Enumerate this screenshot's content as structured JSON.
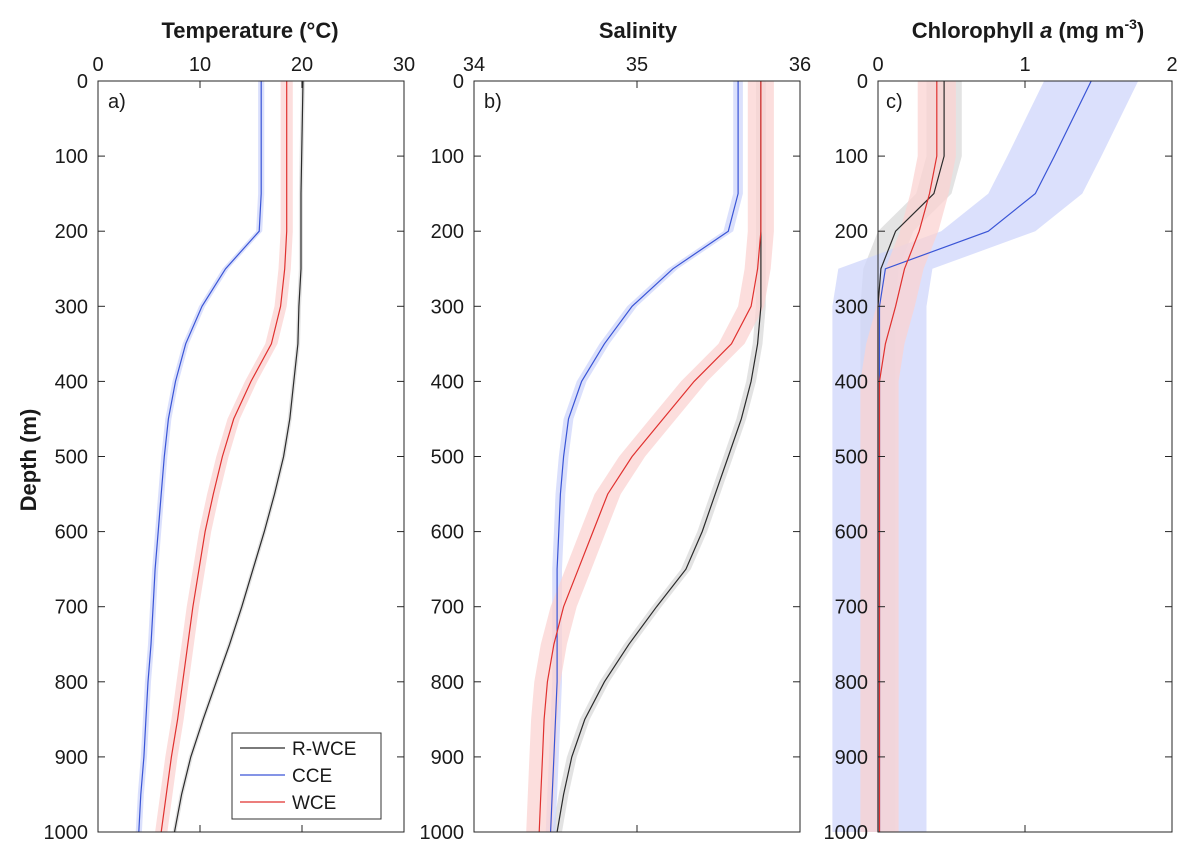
{
  "ylabel": "Depth (m)",
  "legend": {
    "placement": "bottom-right of panel a",
    "entries": [
      {
        "name": "R-WCE",
        "color": "#2b2b2b"
      },
      {
        "name": "CCE",
        "color": "#3a55d6"
      },
      {
        "name": "WCE",
        "color": "#e0312f"
      }
    ]
  },
  "colors": {
    "R-WCE": "#2b2b2b",
    "CCE": "#3a55d6",
    "WCE": "#e0312f",
    "R-WCE_band": "#d9d9d9",
    "CCE_band": "#cfd6fb",
    "WCE_band": "#fbd3d2"
  },
  "chart_data": [
    {
      "type": "line",
      "panel_label": "a)",
      "title_parts": [
        "Temperature (°C)"
      ],
      "xlim": [
        0,
        30
      ],
      "xticks": [
        "0",
        "10",
        "20",
        "30"
      ],
      "ylim": [
        0,
        1000
      ],
      "yticks": [
        "0",
        "100",
        "200",
        "300",
        "400",
        "500",
        "600",
        "700",
        "800",
        "900",
        "1000"
      ],
      "y_reversed": true,
      "x_axis_position": "top",
      "grid": false,
      "depth": [
        0,
        150,
        200,
        250,
        300,
        350,
        400,
        450,
        500,
        550,
        600,
        650,
        700,
        750,
        800,
        850,
        900,
        950,
        1000
      ],
      "series": [
        {
          "name": "R-WCE",
          "values": [
            20.1,
            19.9,
            19.9,
            19.9,
            19.7,
            19.6,
            19.2,
            18.8,
            18.2,
            17.3,
            16.3,
            15.2,
            14.1,
            12.9,
            11.6,
            10.3,
            9.1,
            8.2,
            7.5
          ],
          "band": 0.2
        },
        {
          "name": "CCE",
          "values": [
            16.0,
            16.0,
            15.8,
            12.5,
            10.2,
            8.6,
            7.6,
            6.9,
            6.5,
            6.2,
            5.9,
            5.6,
            5.4,
            5.2,
            4.9,
            4.7,
            4.5,
            4.2,
            4.0
          ],
          "band": 0.3
        },
        {
          "name": "WCE",
          "values": [
            18.5,
            18.5,
            18.5,
            18.3,
            17.9,
            17.0,
            15.0,
            13.3,
            12.2,
            11.3,
            10.5,
            9.9,
            9.3,
            8.8,
            8.3,
            7.8,
            7.2,
            6.7,
            6.2
          ],
          "band": 0.6
        }
      ]
    },
    {
      "type": "line",
      "panel_label": "b)",
      "title_parts": [
        "Salinity"
      ],
      "xlim": [
        34,
        36
      ],
      "xticks": [
        "34",
        "35",
        "36"
      ],
      "ylim": [
        0,
        1000
      ],
      "yticks": [
        "0",
        "100",
        "200",
        "300",
        "400",
        "500",
        "600",
        "700",
        "800",
        "900",
        "1000"
      ],
      "y_reversed": true,
      "x_axis_position": "top",
      "grid": false,
      "depth": [
        0,
        150,
        200,
        250,
        300,
        350,
        400,
        450,
        500,
        550,
        600,
        650,
        700,
        750,
        800,
        850,
        900,
        950,
        1000
      ],
      "series": [
        {
          "name": "R-WCE",
          "values": [
            35.76,
            35.76,
            35.76,
            35.76,
            35.76,
            35.74,
            35.7,
            35.64,
            35.56,
            35.48,
            35.4,
            35.3,
            35.12,
            34.95,
            34.8,
            34.68,
            34.6,
            34.55,
            34.51
          ],
          "band": 0.03
        },
        {
          "name": "CCE",
          "values": [
            35.62,
            35.62,
            35.56,
            35.22,
            34.97,
            34.8,
            34.66,
            34.58,
            34.55,
            34.53,
            34.52,
            34.51,
            34.51,
            34.51,
            34.51,
            34.5,
            34.49,
            34.48,
            34.47
          ],
          "band": 0.03
        },
        {
          "name": "WCE",
          "values": [
            35.76,
            35.76,
            35.76,
            35.74,
            35.7,
            35.58,
            35.35,
            35.16,
            34.97,
            34.82,
            34.73,
            34.64,
            34.55,
            34.49,
            34.45,
            34.43,
            34.42,
            34.41,
            34.4
          ],
          "band": 0.08
        }
      ]
    },
    {
      "type": "line",
      "panel_label": "c)",
      "title_parts": [
        "Chlorophyll ",
        "a",
        " (mg m",
        "-3",
        ")"
      ],
      "xlim": [
        0,
        2
      ],
      "xticks": [
        "0",
        "1",
        "2"
      ],
      "ylim": [
        0,
        1000
      ],
      "yticks": [
        "0",
        "100",
        "200",
        "300",
        "400",
        "500",
        "600",
        "700",
        "800",
        "900",
        "1000"
      ],
      "y_reversed": true,
      "x_axis_position": "top",
      "grid": false,
      "depth": [
        0,
        100,
        150,
        200,
        250,
        300,
        350,
        400,
        500,
        600,
        700,
        800,
        900,
        1000
      ],
      "series": [
        {
          "name": "R-WCE",
          "values": [
            0.45,
            0.45,
            0.38,
            0.12,
            0.02,
            0.0,
            0.0,
            0.0,
            0.0,
            0.0,
            0.0,
            0.0,
            0.0,
            0.0
          ],
          "band": 0.12
        },
        {
          "name": "CCE",
          "values": [
            1.45,
            1.2,
            1.07,
            0.75,
            0.05,
            0.01,
            0.01,
            0.01,
            0.01,
            0.01,
            0.01,
            0.01,
            0.01,
            0.01
          ],
          "band": 0.32
        },
        {
          "name": "WCE",
          "values": [
            0.4,
            0.4,
            0.35,
            0.28,
            0.18,
            0.12,
            0.05,
            0.01,
            0.01,
            0.01,
            0.01,
            0.01,
            0.01,
            0.01
          ],
          "band": 0.13
        }
      ]
    }
  ]
}
